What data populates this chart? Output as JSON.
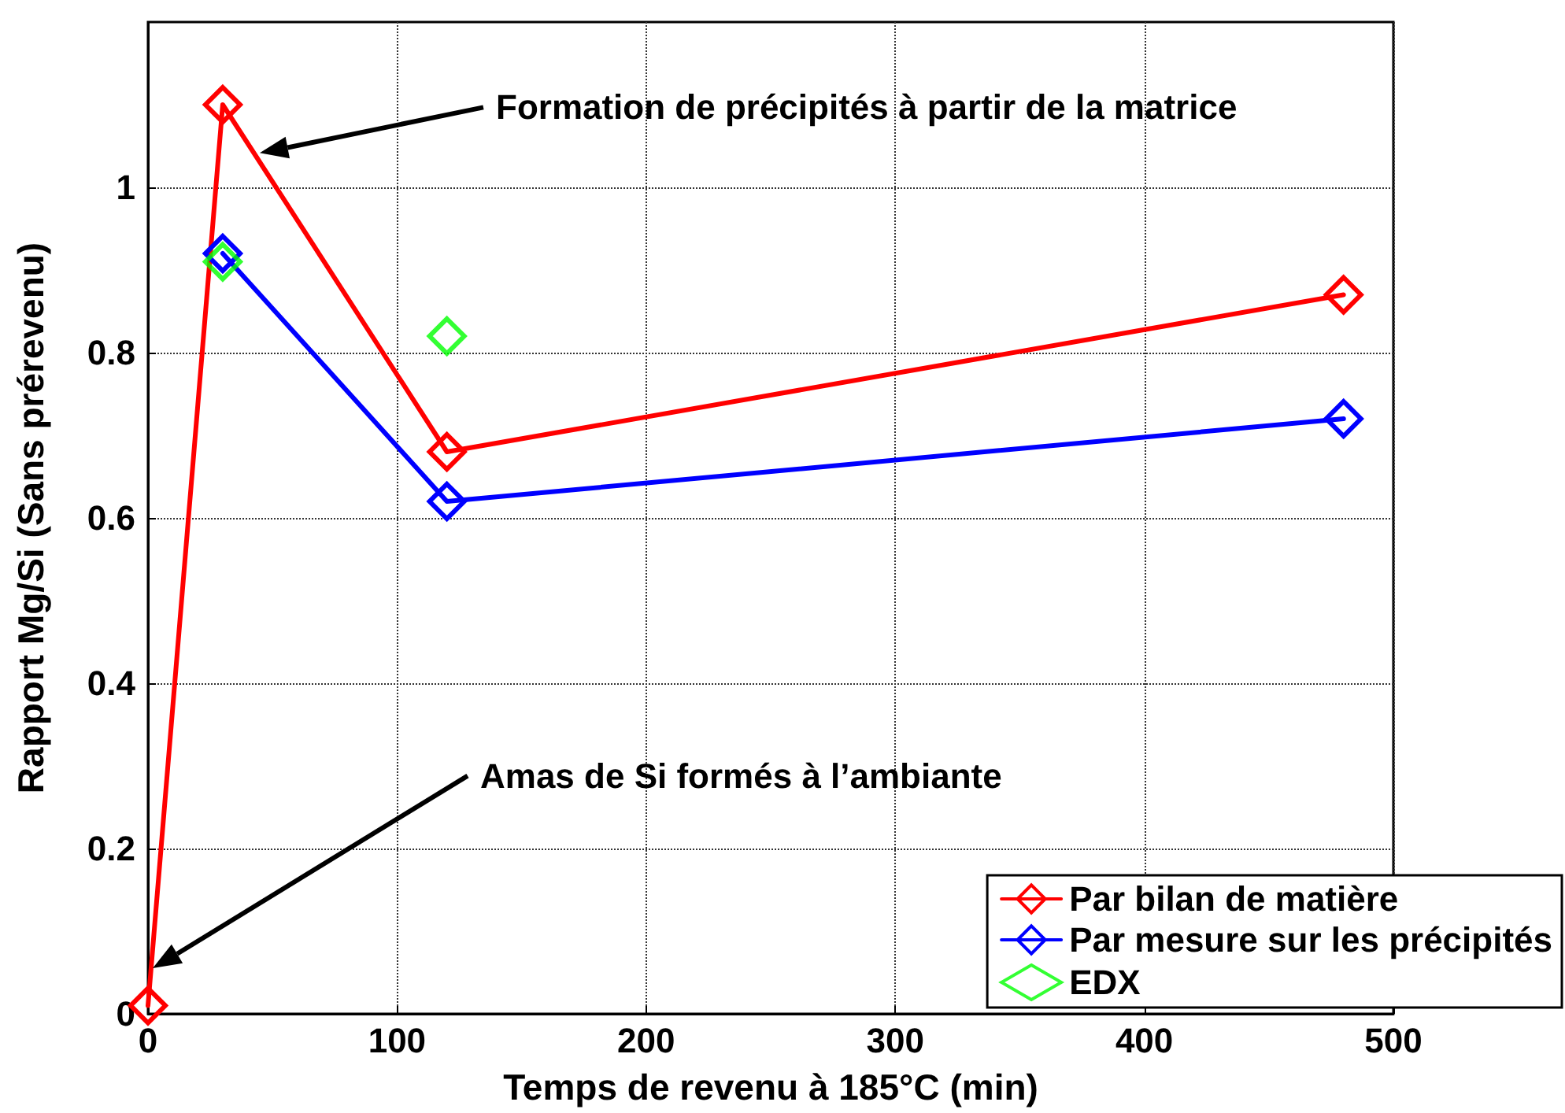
{
  "chart_data": {
    "type": "line",
    "xlabel": "Temps de revenu à 185°C (min)",
    "ylabel": "Rapport Mg/Si (Sans prérevenu)",
    "xlim": [
      0,
      500
    ],
    "xticks": [
      0,
      100,
      200,
      300,
      400,
      500
    ],
    "ylim": [
      0,
      1.2
    ],
    "yticks": [
      0,
      0.2,
      0.4,
      0.6,
      0.8,
      1
    ],
    "grid": true,
    "legend": "bottom right",
    "marker": "diamond",
    "line_style": "solid",
    "series": [
      {
        "name": "Par bilan de matière",
        "color": "#ff0000",
        "x": [
          0,
          30,
          120,
          480
        ],
        "values": [
          0.01,
          1.1,
          0.68,
          0.87
        ]
      },
      {
        "name": "Par mesure sur les précipités",
        "color": "#0000ff",
        "x": [
          30,
          120,
          480
        ],
        "values": [
          0.92,
          0.62,
          0.72
        ]
      },
      {
        "name": "EDX",
        "type": "scatter",
        "color": "#00ff00",
        "x": [
          30,
          120
        ],
        "values": [
          0.91,
          0.82
        ]
      }
    ],
    "annotations": [
      "Formation de précipités à partir de la matrice",
      "Amas de Si formés à l’ambiante"
    ]
  }
}
